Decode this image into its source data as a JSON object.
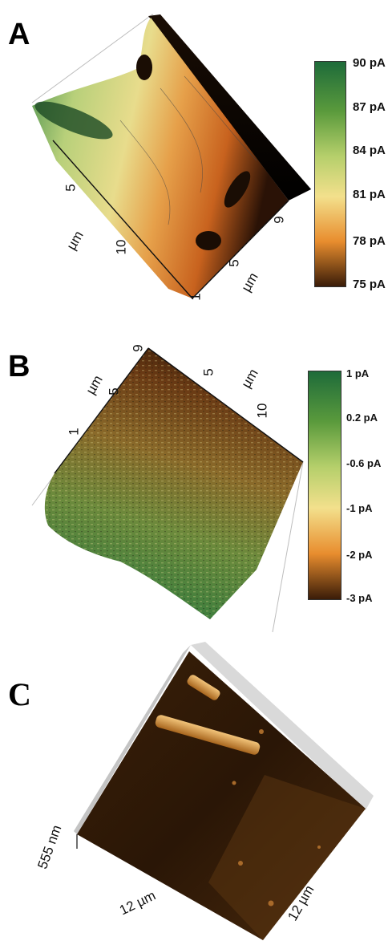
{
  "panels": {
    "A": {
      "label": "A",
      "colorbar": {
        "ticks": [
          "90 pA",
          "87 pA",
          "84 pA",
          "81 pA",
          "78 pA",
          "75 pA"
        ],
        "colors": [
          "#1e6b3a",
          "#5a9a3c",
          "#b5cf6b",
          "#f3e08c",
          "#e88d2e",
          "#3a1c08"
        ]
      },
      "axes": {
        "left_ticks": [
          "5",
          "10"
        ],
        "left_unit": "µm",
        "right_ticks": [
          "1",
          "5",
          "9"
        ],
        "right_unit": "µm"
      }
    },
    "B": {
      "label": "B",
      "colorbar": {
        "ticks": [
          "1 pA",
          "0.2 pA",
          "-0.6 pA",
          "-1 pA",
          "-2 pA",
          "-3 pA"
        ],
        "colors": [
          "#1e6b3a",
          "#5a9a3c",
          "#b5cf6b",
          "#f3e08c",
          "#e88d2e",
          "#3a1c08"
        ]
      },
      "axes": {
        "top_ticks": [
          "5",
          "10"
        ],
        "top_unit": "µm",
        "left_ticks": [
          "9",
          "5",
          "1"
        ],
        "left_unit": "µm"
      }
    },
    "C": {
      "label": "C",
      "z_label": "555 nm",
      "x_label": "12 µm",
      "y_label": "12 µm"
    }
  }
}
